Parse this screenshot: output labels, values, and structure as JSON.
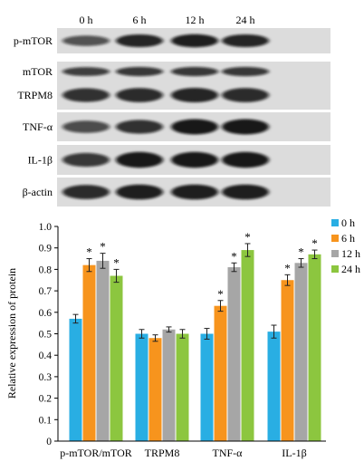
{
  "blot": {
    "lanes": [
      "0 h",
      "6 h",
      "12 h",
      "24 h"
    ],
    "proteins": [
      "p-mTOR",
      "mTOR",
      "TRPM8",
      "TNF-α",
      "IL-1β",
      "β-actin"
    ]
  },
  "chart_data": {
    "type": "bar",
    "categories": [
      "p-mTOR/mTOR",
      "TRPM8",
      "TNF-α",
      "IL-1β"
    ],
    "ylabel": "Relative expression of protein",
    "xlabel": "",
    "ylim": [
      0,
      1.0
    ],
    "yticks": [
      "0",
      "0.1",
      "0.2",
      "0.3",
      "0.4",
      "0.5",
      "0.6",
      "0.7",
      "0.8",
      "0.9",
      "1.0"
    ],
    "legend_position": "top-right",
    "series": [
      {
        "name": "0 h",
        "color": "#29aee3",
        "values": [
          0.57,
          0.5,
          0.5,
          0.51
        ],
        "errors": [
          0.02,
          0.02,
          0.025,
          0.03
        ],
        "significant": [
          false,
          false,
          false,
          false
        ]
      },
      {
        "name": "6 h",
        "color": "#f7941d",
        "values": [
          0.82,
          0.48,
          0.63,
          0.75
        ],
        "errors": [
          0.03,
          0.015,
          0.025,
          0.025
        ],
        "significant": [
          true,
          false,
          true,
          true
        ]
      },
      {
        "name": "12 h",
        "color": "#a6a6a6",
        "values": [
          0.84,
          0.52,
          0.81,
          0.83
        ],
        "errors": [
          0.035,
          0.012,
          0.02,
          0.02
        ],
        "significant": [
          true,
          false,
          true,
          true
        ]
      },
      {
        "name": "24 h",
        "color": "#8cc63f",
        "values": [
          0.77,
          0.5,
          0.89,
          0.87
        ],
        "errors": [
          0.03,
          0.02,
          0.03,
          0.02
        ],
        "significant": [
          true,
          false,
          true,
          true
        ]
      }
    ],
    "significance_marker": "*"
  }
}
